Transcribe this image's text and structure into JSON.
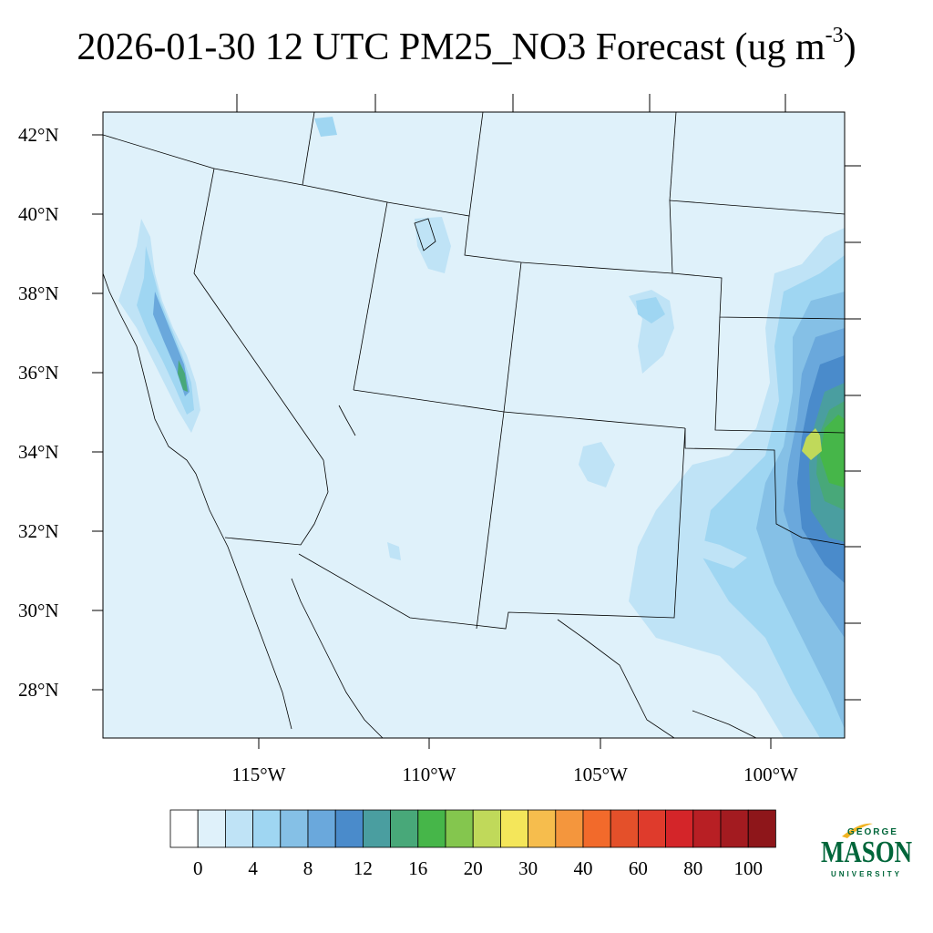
{
  "title": {
    "main": "2026-01-30 12 UTC PM25_NO3 Forecast (ug m",
    "sup": "-3",
    "close": ")"
  },
  "map": {
    "lat_labels": [
      "42°N",
      "40°N",
      "38°N",
      "36°N",
      "34°N",
      "32°N",
      "30°N",
      "28°N"
    ],
    "lon_labels": [
      "115°W",
      "110°W",
      "105°W",
      "100°W"
    ],
    "background_color": "#dff1fa"
  },
  "colorbar": {
    "colors": [
      "#ffffff",
      "#dff1fa",
      "#bfe3f6",
      "#9fd6f2",
      "#85c0e6",
      "#6aa8dc",
      "#4a8bcb",
      "#4a9ea0",
      "#48a879",
      "#46b649",
      "#84c64e",
      "#c0d95a",
      "#f4e65a",
      "#f6bd4d",
      "#f4963d",
      "#f26a2b",
      "#e4502a",
      "#df3b2c",
      "#d42529",
      "#b81f24",
      "#a31b20",
      "#8e161a"
    ],
    "labels": [
      "0",
      "4",
      "8",
      "12",
      "16",
      "20",
      "30",
      "40",
      "60",
      "80",
      "100"
    ]
  },
  "logo": {
    "line1": "GEORGE",
    "line2": "MASON",
    "line3": "UNIVERSITY",
    "color": "#00663a",
    "accent": "#f0b323"
  }
}
